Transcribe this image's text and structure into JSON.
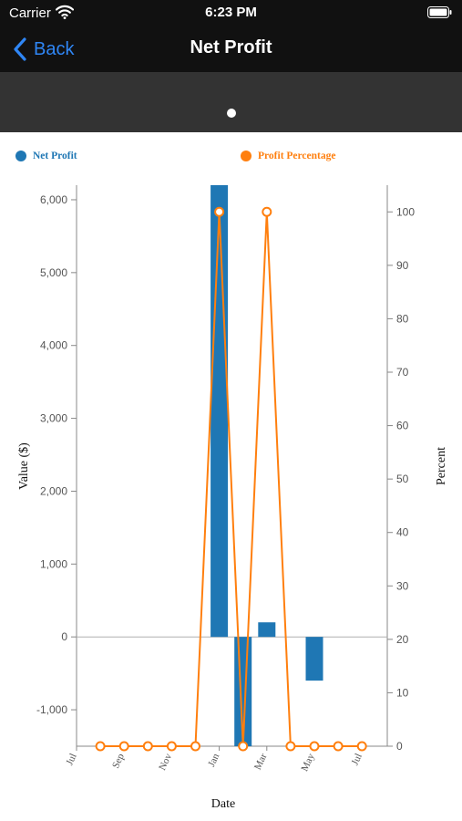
{
  "status_bar": {
    "carrier": "Carrier",
    "time": "6:23 PM"
  },
  "nav": {
    "back_label": "Back",
    "title": "Net Profit"
  },
  "legend": [
    {
      "label": "Net Profit",
      "color": "#1f77b4"
    },
    {
      "label": "Profit Percentage",
      "color": "#ff7f0e"
    }
  ],
  "chart_data": {
    "type": "bar",
    "xlabel": "Date",
    "ylabel": "Value ($)",
    "y2label": "Percent",
    "ylim": [
      -1500,
      6200
    ],
    "y2lim": [
      0,
      105
    ],
    "y_ticks": [
      -1000,
      0,
      1000,
      2000,
      3000,
      4000,
      5000,
      6000
    ],
    "y_tick_labels": [
      "-1,000",
      "0",
      "1,000",
      "2,000",
      "3,000",
      "4,000",
      "5,000",
      "6,000"
    ],
    "y2_ticks": [
      0,
      10,
      20,
      30,
      40,
      50,
      60,
      70,
      80,
      90,
      100
    ],
    "y2_tick_labels": [
      "0",
      "10",
      "20",
      "30",
      "40",
      "50",
      "60",
      "70",
      "80",
      "90",
      "100"
    ],
    "x_tick_labels": [
      "Jul",
      "Sep",
      "Nov",
      "Jan",
      "Mar",
      "May",
      "Jul"
    ],
    "x_tick_month_index": [
      0,
      2,
      4,
      6,
      8,
      10,
      12
    ],
    "month_index": [
      1,
      2,
      3,
      4,
      5,
      6,
      7,
      8,
      9,
      10,
      11,
      12
    ],
    "series": [
      {
        "name": "Net Profit",
        "type": "bar",
        "color": "#1f77b4",
        "values": [
          0,
          0,
          0,
          0,
          0,
          6200,
          -1500,
          200,
          0,
          -600,
          0,
          0
        ]
      },
      {
        "name": "Profit Percentage",
        "type": "line",
        "axis": "right",
        "color": "#ff7f0e",
        "values": [
          0,
          0,
          0,
          0,
          0,
          100,
          0,
          100,
          0,
          0,
          0,
          0
        ]
      }
    ]
  }
}
